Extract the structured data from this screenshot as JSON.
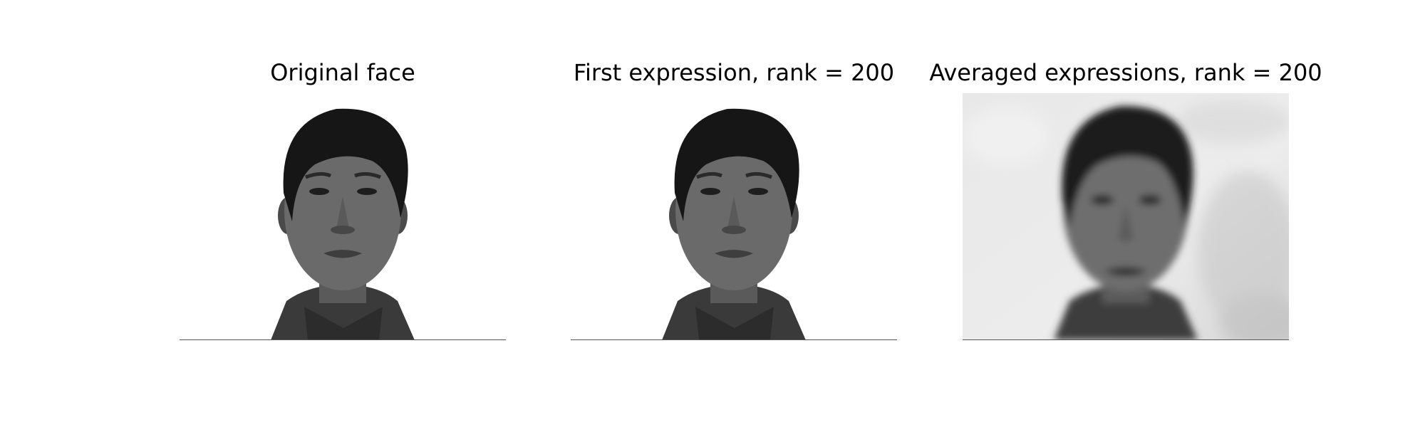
{
  "figure": {
    "panels": [
      {
        "title": "Original face",
        "image": "face-portrait",
        "variant": "sharp",
        "background": "#ffffff"
      },
      {
        "title": "First expression, rank = 200",
        "image": "face-portrait",
        "variant": "sharp",
        "background": "#ffffff"
      },
      {
        "title": "Averaged expressions, rank = 200",
        "image": "face-portrait",
        "variant": "blurred",
        "background": "#e6e6e6"
      }
    ]
  }
}
